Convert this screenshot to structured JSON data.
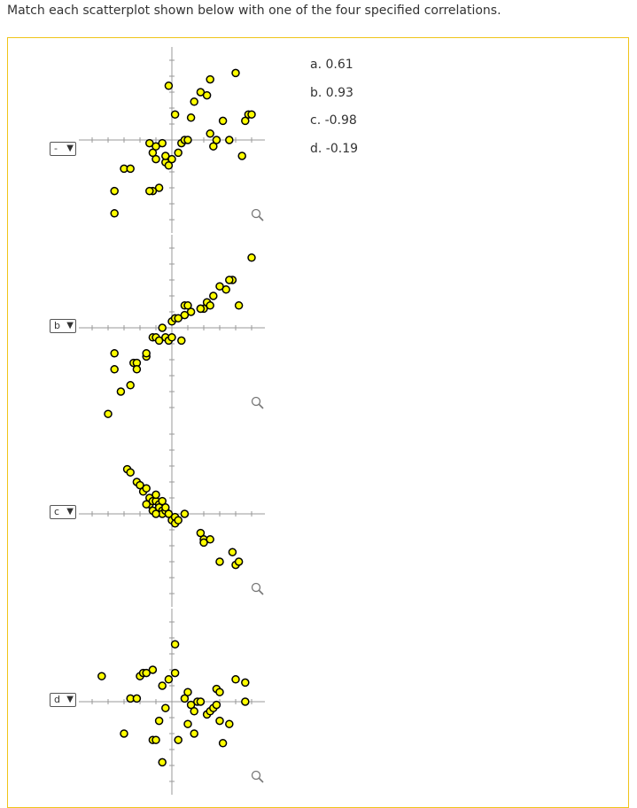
{
  "instruction": "Match each scatterplot shown below with one of the four specified correlations.",
  "colors": {
    "panel_border": "#f0c419",
    "point_fill": "#ffff00",
    "point_stroke": "#000000"
  },
  "rows": [
    {
      "selected": "-",
      "points": [
        [
          -1.8,
          -1.6
        ],
        [
          -1.8,
          -2.3
        ],
        [
          -1.5,
          -0.9
        ],
        [
          -1.3,
          -0.9
        ],
        [
          -0.7,
          -0.1
        ],
        [
          -0.6,
          -0.4
        ],
        [
          -0.5,
          -0.6
        ],
        [
          -0.5,
          -0.2
        ],
        [
          -0.4,
          -1.5
        ],
        [
          -0.3,
          -0.1
        ],
        [
          -0.2,
          -0.7
        ],
        [
          -0.2,
          -0.5
        ],
        [
          -0.1,
          -0.8
        ],
        [
          0.0,
          -0.6
        ],
        [
          -0.1,
          1.7
        ],
        [
          0.1,
          0.8
        ],
        [
          -0.6,
          -1.6
        ],
        [
          -0.7,
          -1.6
        ],
        [
          0.2,
          -0.4
        ],
        [
          0.3,
          -0.1
        ],
        [
          0.4,
          0.0
        ],
        [
          0.5,
          0.0
        ],
        [
          0.6,
          0.7
        ],
        [
          0.7,
          1.2
        ],
        [
          0.9,
          1.5
        ],
        [
          1.1,
          1.4
        ],
        [
          1.2,
          0.2
        ],
        [
          1.3,
          -0.2
        ],
        [
          1.4,
          0.0
        ],
        [
          1.6,
          0.6
        ],
        [
          1.8,
          0.0
        ],
        [
          2.2,
          -0.5
        ],
        [
          2.3,
          0.6
        ],
        [
          2.4,
          0.8
        ],
        [
          2.5,
          0.8
        ],
        [
          2.0,
          2.1
        ],
        [
          1.2,
          1.9
        ]
      ]
    },
    {
      "selected": "b",
      "points": [
        [
          -2.0,
          -2.7
        ],
        [
          -1.8,
          -0.8
        ],
        [
          -1.8,
          -1.3
        ],
        [
          -1.6,
          -2.0
        ],
        [
          -1.3,
          -1.8
        ],
        [
          -1.2,
          -1.1
        ],
        [
          -1.1,
          -1.1
        ],
        [
          -1.1,
          -1.3
        ],
        [
          -0.8,
          -0.9
        ],
        [
          -0.8,
          -0.8
        ],
        [
          -0.6,
          -0.3
        ],
        [
          -0.5,
          -0.3
        ],
        [
          -0.4,
          -0.4
        ],
        [
          -0.3,
          0.0
        ],
        [
          -0.2,
          -0.3
        ],
        [
          -0.1,
          -0.4
        ],
        [
          0.0,
          -0.3
        ],
        [
          0.0,
          0.2
        ],
        [
          0.1,
          0.3
        ],
        [
          0.2,
          0.3
        ],
        [
          0.3,
          -0.4
        ],
        [
          0.4,
          0.4
        ],
        [
          0.4,
          0.7
        ],
        [
          0.5,
          0.7
        ],
        [
          0.6,
          0.5
        ],
        [
          0.9,
          0.6
        ],
        [
          1.0,
          0.6
        ],
        [
          1.1,
          0.8
        ],
        [
          1.2,
          0.7
        ],
        [
          1.3,
          1.0
        ],
        [
          1.5,
          1.3
        ],
        [
          1.7,
          1.2
        ],
        [
          1.9,
          1.5
        ],
        [
          1.8,
          1.5
        ],
        [
          2.1,
          0.7
        ],
        [
          2.5,
          2.2
        ],
        [
          0.9,
          0.6
        ]
      ]
    },
    {
      "selected": "c",
      "points": [
        [
          -1.4,
          1.4
        ],
        [
          -1.3,
          1.3
        ],
        [
          -1.1,
          1.0
        ],
        [
          -1.0,
          0.9
        ],
        [
          -0.9,
          0.7
        ],
        [
          -0.8,
          0.8
        ],
        [
          -0.7,
          0.5
        ],
        [
          -0.7,
          0.3
        ],
        [
          -0.6,
          0.4
        ],
        [
          -0.5,
          0.4
        ],
        [
          -0.5,
          0.6
        ],
        [
          -0.4,
          0.3
        ],
        [
          -0.4,
          0.2
        ],
        [
          -0.3,
          0.1
        ],
        [
          -0.3,
          0.0
        ],
        [
          -0.2,
          0.1
        ],
        [
          -0.2,
          0.2
        ],
        [
          -0.1,
          0.0
        ],
        [
          0.0,
          -0.2
        ],
        [
          0.1,
          -0.1
        ],
        [
          0.1,
          -0.3
        ],
        [
          0.2,
          -0.2
        ],
        [
          0.4,
          0.0
        ],
        [
          0.9,
          -0.6
        ],
        [
          1.0,
          -0.8
        ],
        [
          1.0,
          -0.9
        ],
        [
          1.2,
          -0.8
        ],
        [
          1.5,
          -1.5
        ],
        [
          1.9,
          -1.2
        ],
        [
          2.0,
          -1.6
        ],
        [
          2.1,
          -1.5
        ],
        [
          -0.6,
          0.1
        ],
        [
          -0.5,
          0.0
        ],
        [
          -0.8,
          0.3
        ],
        [
          -0.3,
          0.4
        ]
      ]
    },
    {
      "selected": "d",
      "points": [
        [
          -2.2,
          0.8
        ],
        [
          -1.5,
          -1.0
        ],
        [
          -1.3,
          0.1
        ],
        [
          -1.1,
          0.1
        ],
        [
          -1.0,
          0.8
        ],
        [
          -0.9,
          0.9
        ],
        [
          -0.8,
          0.9
        ],
        [
          -0.6,
          1.0
        ],
        [
          -0.4,
          -0.6
        ],
        [
          -0.3,
          0.5
        ],
        [
          -0.2,
          -0.2
        ],
        [
          -0.3,
          -1.9
        ],
        [
          -0.1,
          0.7
        ],
        [
          0.1,
          0.9
        ],
        [
          0.1,
          1.8
        ],
        [
          0.2,
          -1.2
        ],
        [
          0.4,
          0.1
        ],
        [
          0.5,
          -0.7
        ],
        [
          0.5,
          0.3
        ],
        [
          0.6,
          -0.1
        ],
        [
          0.7,
          -1.0
        ],
        [
          0.7,
          -0.3
        ],
        [
          0.8,
          0.0
        ],
        [
          0.9,
          0.0
        ],
        [
          1.1,
          -0.4
        ],
        [
          1.2,
          -0.3
        ],
        [
          1.3,
          -0.2
        ],
        [
          1.4,
          0.4
        ],
        [
          1.4,
          -0.1
        ],
        [
          1.5,
          0.3
        ],
        [
          1.5,
          -0.6
        ],
        [
          1.6,
          -1.3
        ],
        [
          1.8,
          -0.7
        ],
        [
          2.0,
          0.7
        ],
        [
          2.3,
          0.6
        ],
        [
          2.3,
          0.0
        ],
        [
          -0.6,
          -1.2
        ],
        [
          -0.5,
          -1.2
        ]
      ]
    }
  ],
  "choices": [
    "a. 0.61",
    "b. 0.93",
    "c. -0.98",
    "d. -0.19"
  ]
}
